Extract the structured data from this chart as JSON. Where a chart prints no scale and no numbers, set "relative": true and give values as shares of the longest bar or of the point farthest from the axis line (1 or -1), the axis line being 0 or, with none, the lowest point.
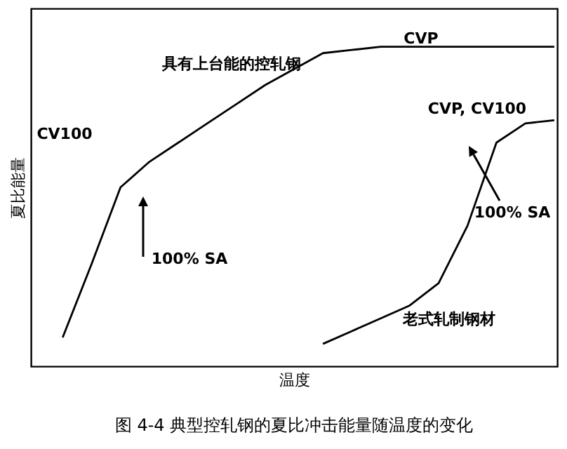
{
  "chart_data": {
    "type": "line",
    "relative": true,
    "title": "图 4-4 典型控轧钢的夏比冲击能量随温度的变化",
    "xlabel": "温度",
    "ylabel": "夏比能量",
    "categories": [
      null,
      null,
      null,
      null,
      null,
      null,
      null,
      null,
      null,
      null,
      null,
      null,
      null,
      null,
      null,
      null,
      null,
      null,
      null
    ],
    "series": [
      {
        "color": "#000000",
        "values": [
          null,
          0.09,
          0.32,
          0.56,
          0.64,
          0.7,
          0.76,
          0.82,
          0.88,
          0.93,
          0.98,
          0.99,
          1.0,
          1.0,
          1.0,
          1.0,
          1.0,
          1.0,
          1.0
        ]
      },
      {
        "color": "#000000",
        "values": [
          null,
          null,
          null,
          null,
          null,
          null,
          null,
          null,
          null,
          null,
          0.07,
          0.11,
          0.15,
          0.19,
          0.26,
          0.44,
          0.7,
          0.76,
          0.77
        ]
      }
    ],
    "annotations": [
      "具有上台能的控轧钢",
      "CVP",
      "CV100",
      "100% SA",
      "CVP, CV100",
      "100% SA",
      "老式轧制钢材"
    ],
    "grid": false,
    "marker": "none",
    "line_style": "solid"
  }
}
